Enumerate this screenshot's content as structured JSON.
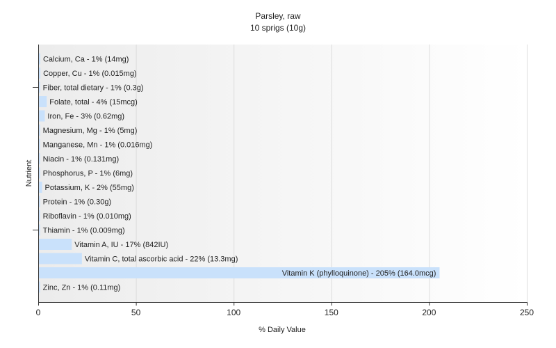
{
  "chart_data": {
    "type": "bar",
    "orientation": "horizontal",
    "title": "Parsley, raw",
    "subtitle": "10 sprigs (10g)",
    "xlabel": "% Daily Value",
    "ylabel": "Nutrient",
    "xlim": [
      0,
      250
    ],
    "xticks": [
      0,
      50,
      100,
      150,
      200,
      250
    ],
    "grid": true,
    "bar_color": "#c9e1fb",
    "background_gradient": [
      "#ececec",
      "#ffffff"
    ],
    "categories": [
      "Calcium, Ca",
      "Copper, Cu",
      "Fiber, total dietary",
      "Folate, total",
      "Iron, Fe",
      "Magnesium, Mg",
      "Manganese, Mn",
      "Niacin",
      "Phosphorus, P",
      "Potassium, K",
      "Protein",
      "Riboflavin",
      "Thiamin",
      "Vitamin A, IU",
      "Vitamin C, total ascorbic acid",
      "Vitamin K (phylloquinone)",
      "Zinc, Zn"
    ],
    "values": [
      0.7,
      0.75,
      0.6,
      4,
      3,
      0.6,
      0.6,
      0.6,
      0.6,
      1.6,
      0.6,
      0.6,
      0.6,
      16.8,
      22,
      205,
      0.6
    ],
    "labels": [
      "Calcium, Ca - 1% (14mg)",
      "Copper, Cu - 1% (0.015mg)",
      "Fiber, total dietary - 1% (0.3g)",
      "Folate, total - 4% (15mcg)",
      "Iron, Fe - 3% (0.62mg)",
      "Magnesium, Mg - 1% (5mg)",
      "Manganese, Mn - 1% (0.016mg)",
      "Niacin - 1% (0.131mg)",
      "Phosphorus, P - 1% (6mg)",
      "Potassium, K - 2% (55mg)",
      "Protein - 1% (0.30g)",
      "Riboflavin - 1% (0.010mg)",
      "Thiamin - 1% (0.009mg)",
      "Vitamin A, IU - 17% (842IU)",
      "Vitamin C, total ascorbic acid - 22% (13.3mg)",
      "Vitamin K (phylloquinone) - 205% (164.0mcg)",
      "Zinc, Zn - 1% (0.11mg)"
    ]
  }
}
